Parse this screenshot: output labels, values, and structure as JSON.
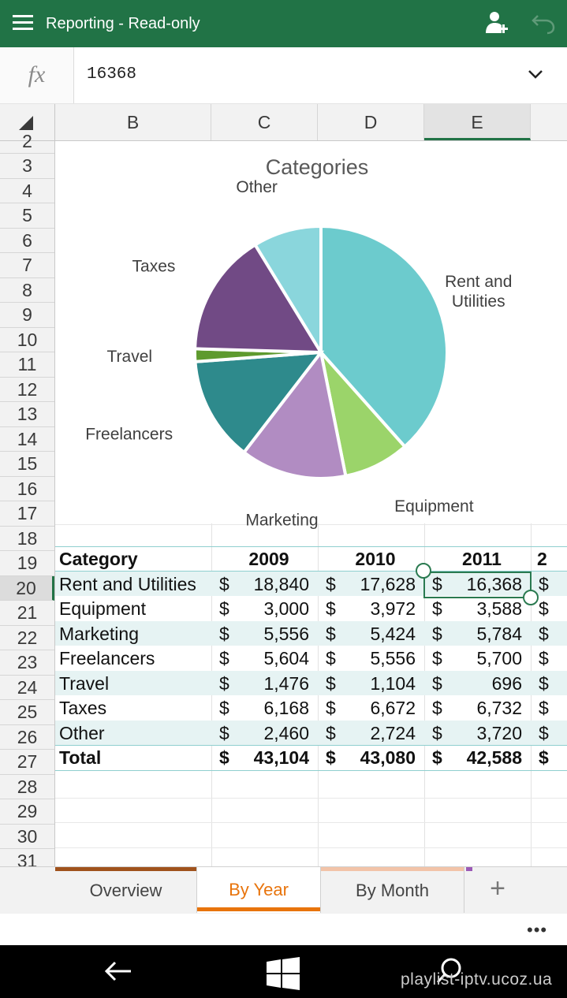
{
  "header": {
    "title": "Reporting - Read-only",
    "share_icon": "add-person-icon",
    "undo_icon": "undo-icon"
  },
  "formula_bar": {
    "fx_label": "fx",
    "value": "16368"
  },
  "columns": [
    "B",
    "C",
    "D",
    "E"
  ],
  "selected_column": "E",
  "rows": [
    "2",
    "3",
    "4",
    "5",
    "6",
    "7",
    "8",
    "9",
    "10",
    "11",
    "12",
    "13",
    "14",
    "15",
    "16",
    "17",
    "18",
    "19",
    "20",
    "21",
    "22",
    "23",
    "24",
    "25",
    "26",
    "27",
    "28",
    "29",
    "30",
    "31"
  ],
  "selected_row": "20",
  "chart_data": {
    "type": "pie",
    "title": "Categories",
    "categories": [
      "Rent and Utilities",
      "Equipment",
      "Marketing",
      "Freelancers",
      "Travel",
      "Taxes",
      "Other"
    ],
    "values": [
      16368,
      3588,
      5784,
      5700,
      696,
      6732,
      3720
    ],
    "colors": [
      "#6ccbcd",
      "#9bd46a",
      "#b18cc2",
      "#2e8a8c",
      "#5e9a2e",
      "#714a85",
      "#8ad6dc"
    ],
    "label_lines": [
      [
        "Rent and",
        "Utilities"
      ],
      [
        "Equipment"
      ],
      [
        "Marketing"
      ],
      [
        "Freelancers"
      ],
      [
        "Travel"
      ],
      [
        "Taxes"
      ],
      [
        "Other"
      ]
    ],
    "legend": "none"
  },
  "table": {
    "header": [
      "Category",
      "2009",
      "2010",
      "2011"
    ],
    "rows": [
      {
        "category": "Rent and Utilities",
        "v2009": "18,840",
        "v2010": "17,628",
        "v2011": "16,368"
      },
      {
        "category": "Equipment",
        "v2009": "3,000",
        "v2010": "3,972",
        "v2011": "3,588"
      },
      {
        "category": "Marketing",
        "v2009": "5,556",
        "v2010": "5,424",
        "v2011": "5,784"
      },
      {
        "category": "Freelancers",
        "v2009": "5,604",
        "v2010": "5,556",
        "v2011": "5,700"
      },
      {
        "category": "Travel",
        "v2009": "1,476",
        "v2010": "1,104",
        "v2011": "696"
      },
      {
        "category": "Taxes",
        "v2009": "6,168",
        "v2010": "6,672",
        "v2011": "6,732"
      },
      {
        "category": "Other",
        "v2009": "2,460",
        "v2010": "2,724",
        "v2011": "3,720"
      }
    ],
    "total": {
      "category": "Total",
      "v2009": "43,104",
      "v2010": "43,080",
      "v2011": "42,588"
    },
    "currency": "$",
    "cut_header": "2"
  },
  "tabs": [
    {
      "label": "Overview",
      "color": "#a0521c"
    },
    {
      "label": "By Year",
      "color": "#e8740c"
    },
    {
      "label": "By Month",
      "color": "#f2c3a8"
    }
  ],
  "active_tab": "By Year",
  "add_sheet_label": "+",
  "more_label": "•••",
  "watermark": "playlist-iptv.ucoz.ua"
}
